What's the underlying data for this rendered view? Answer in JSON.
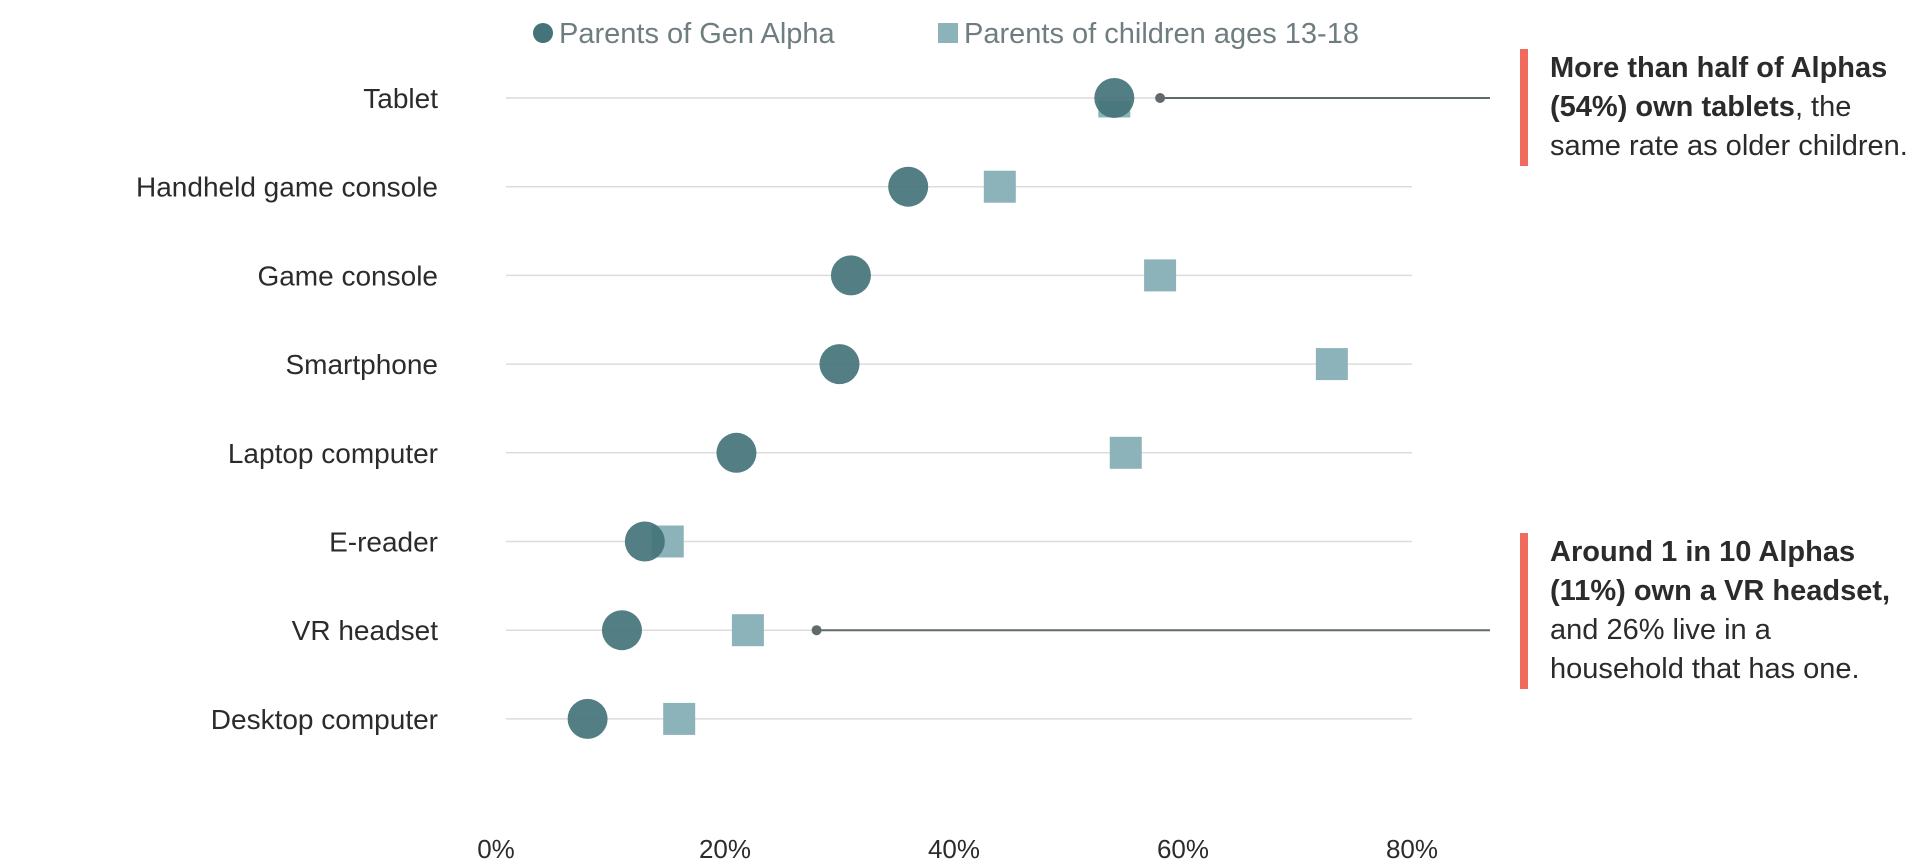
{
  "chart_data": {
    "type": "scatter",
    "categories": [
      "Tablet",
      "Handheld game console",
      "Game console",
      "Smartphone",
      "Laptop computer",
      "E-reader",
      "VR headset",
      "Desktop computer"
    ],
    "series": [
      {
        "name": "Parents of Gen Alpha",
        "values": [
          54,
          36,
          31,
          30,
          21,
          13,
          11,
          8
        ]
      },
      {
        "name": "Parents of children ages 13-18",
        "values": [
          54,
          44,
          58,
          73,
          55,
          15,
          22,
          16
        ]
      }
    ],
    "x_ticks": [
      0,
      20,
      40,
      60,
      80
    ],
    "x_tick_labels": [
      "0%",
      "20%",
      "40%",
      "60%",
      "80%"
    ],
    "xlim": [
      0,
      80
    ],
    "grid": true,
    "legend": "top",
    "colors": {
      "alpha": "#44737a",
      "teen": "#8cb3b9",
      "accent": "#f06b5d",
      "grid": "#dcdcdc",
      "callout": "#606a6c"
    },
    "callouts": [
      {
        "category": "Tablet",
        "value": 58
      },
      {
        "category": "VR headset",
        "value": 28
      }
    ]
  },
  "annotations": [
    {
      "bold": "More than half of Alphas (54%) own tablets",
      "text": ", the same rate as older children."
    },
    {
      "bold": "Around 1 in 10 Alphas (11%) own a VR headset,",
      "text": " and 26% live in a household that has one."
    }
  ]
}
